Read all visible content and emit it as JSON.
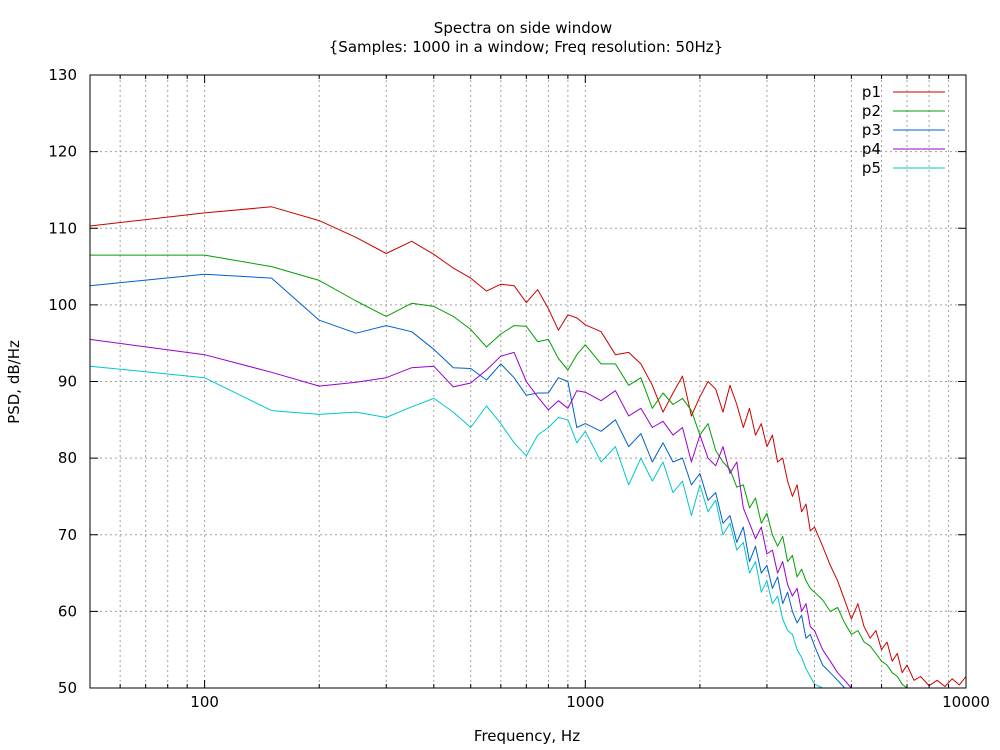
{
  "chart_data": {
    "type": "line",
    "title": "Spectra on side window",
    "subtitle": "{Samples: 1000 in a window; Freq resolution: 50Hz}",
    "xlabel": "Frequency, Hz",
    "ylabel": "PSD, dB/Hz",
    "xscale": "log",
    "xlim": [
      50,
      10000
    ],
    "ylim": [
      50,
      130
    ],
    "xticks": [
      100,
      1000,
      10000
    ],
    "xtick_labels": [
      "100",
      "1000",
      "10000"
    ],
    "yticks": [
      50,
      60,
      70,
      80,
      90,
      100,
      110,
      120,
      130
    ],
    "ytick_labels": [
      "50",
      "60",
      "70",
      "80",
      "90",
      "100",
      "110",
      "120",
      "130"
    ],
    "grid": true,
    "legend_position": "top-right",
    "series": [
      {
        "name": "p1",
        "color": "#cc0000",
        "x": [
          50,
          100,
          150,
          200,
          250,
          300,
          350,
          400,
          450,
          500,
          550,
          600,
          650,
          700,
          750,
          800,
          850,
          900,
          950,
          1000,
          1100,
          1200,
          1300,
          1400,
          1500,
          1600,
          1700,
          1800,
          1900,
          2000,
          2100,
          2200,
          2300,
          2400,
          2500,
          2600,
          2700,
          2800,
          2900,
          3000,
          3100,
          3200,
          3300,
          3400,
          3500,
          3600,
          3700,
          3800,
          3900,
          4000,
          4200,
          4400,
          4600,
          4800,
          5000,
          5200,
          5400,
          5600,
          5800,
          6000,
          6200,
          6400,
          6600,
          6800,
          7000,
          7300,
          7600,
          8000,
          8400,
          8800,
          9200,
          9600,
          10000
        ],
        "y": [
          110.3,
          112,
          112.8,
          111,
          108.8,
          106.7,
          108.3,
          106.6,
          104.8,
          103.5,
          101.8,
          102.7,
          102.5,
          100.3,
          102.0,
          99.5,
          96.7,
          98.7,
          98.3,
          97.4,
          96.5,
          93.5,
          93.8,
          92.3,
          89.5,
          86.0,
          88.5,
          90.7,
          85.5,
          88.0,
          90.0,
          89.0,
          86.0,
          89.5,
          87.0,
          84.0,
          86.5,
          83.0,
          84.5,
          81.5,
          83.0,
          79.5,
          80.0,
          77.0,
          75.0,
          76.5,
          73.0,
          74.0,
          70.5,
          71.0,
          68.5,
          66.0,
          64.0,
          61.5,
          59.0,
          61.0,
          58.0,
          56.5,
          57.5,
          55.0,
          56.0,
          53.5,
          54.5,
          52.0,
          53.0,
          51.0,
          51.5,
          50.3,
          51.0,
          50.2,
          51.2,
          50.4,
          51.5
        ]
      },
      {
        "name": "p2",
        "color": "#00a000",
        "x": [
          50,
          100,
          150,
          200,
          250,
          300,
          350,
          400,
          450,
          500,
          550,
          600,
          650,
          700,
          750,
          800,
          850,
          900,
          950,
          1000,
          1100,
          1200,
          1300,
          1400,
          1500,
          1600,
          1700,
          1800,
          1900,
          2000,
          2100,
          2200,
          2300,
          2400,
          2500,
          2600,
          2700,
          2800,
          2900,
          3000,
          3100,
          3200,
          3300,
          3400,
          3500,
          3600,
          3700,
          3800,
          3900,
          4000,
          4200,
          4400,
          4600,
          4800,
          5000,
          5200,
          5400,
          5600,
          5800,
          6000,
          6200,
          6400,
          6600,
          6800,
          7000
        ],
        "y": [
          106.5,
          106.5,
          105.0,
          103.2,
          100.5,
          98.5,
          100.2,
          99.8,
          98.5,
          96.8,
          94.5,
          96.2,
          97.3,
          97.2,
          95.2,
          95.5,
          93.0,
          91.5,
          93.5,
          94.8,
          92.3,
          92.3,
          89.5,
          90.5,
          86.5,
          88.5,
          87.0,
          87.8,
          86.2,
          83.0,
          84.5,
          81.0,
          79.5,
          78.5,
          76.2,
          76.5,
          73.5,
          74.8,
          71.5,
          72.8,
          70.0,
          68.5,
          69.8,
          66.5,
          67.3,
          64.5,
          65.5,
          64.0,
          63.0,
          62.5,
          61.5,
          60.0,
          60.5,
          58.5,
          57.0,
          57.5,
          56.0,
          55.5,
          54.5,
          53.5,
          53.0,
          52.0,
          51.5,
          50.5,
          50.0
        ]
      },
      {
        "name": "p3",
        "color": "#0060cc",
        "x": [
          50,
          100,
          150,
          200,
          250,
          300,
          350,
          400,
          450,
          500,
          550,
          600,
          650,
          700,
          750,
          800,
          850,
          900,
          950,
          1000,
          1100,
          1200,
          1300,
          1400,
          1500,
          1600,
          1700,
          1800,
          1900,
          2000,
          2100,
          2200,
          2300,
          2400,
          2500,
          2600,
          2700,
          2800,
          2900,
          3000,
          3100,
          3200,
          3300,
          3400,
          3500,
          3600,
          3700,
          3800,
          3900,
          4000,
          4200,
          4400,
          4600,
          4800
        ],
        "y": [
          102.5,
          104.0,
          103.5,
          98.0,
          96.3,
          97.3,
          96.5,
          94.2,
          91.8,
          91.7,
          90.2,
          92.3,
          90.5,
          88.2,
          88.5,
          88.5,
          90.5,
          90.0,
          84.0,
          84.5,
          83.5,
          85.0,
          81.5,
          83.2,
          79.5,
          82.0,
          79.5,
          80.0,
          76.5,
          78.0,
          74.5,
          75.5,
          71.5,
          72.5,
          69.0,
          71.0,
          66.5,
          68.5,
          65.0,
          66.0,
          63.0,
          64.5,
          61.0,
          62.5,
          60.0,
          58.5,
          59.5,
          56.5,
          57.0,
          55.5,
          53.0,
          52.0,
          51.0,
          50.0
        ]
      },
      {
        "name": "p4",
        "color": "#9900cc",
        "x": [
          50,
          100,
          150,
          200,
          250,
          300,
          350,
          400,
          450,
          500,
          550,
          600,
          650,
          700,
          750,
          800,
          850,
          900,
          950,
          1000,
          1100,
          1200,
          1300,
          1400,
          1500,
          1600,
          1700,
          1800,
          1900,
          2000,
          2100,
          2200,
          2300,
          2400,
          2500,
          2600,
          2700,
          2800,
          2900,
          3000,
          3100,
          3200,
          3300,
          3400,
          3500,
          3600,
          3700,
          3800,
          3900,
          4000,
          4200,
          4400,
          4600,
          4800,
          5000
        ],
        "y": [
          95.5,
          93.5,
          91.2,
          89.4,
          89.9,
          90.5,
          91.8,
          92.0,
          89.3,
          89.8,
          91.5,
          93.3,
          93.8,
          90.0,
          88.0,
          86.3,
          87.5,
          86.5,
          88.8,
          88.6,
          87.5,
          88.8,
          85.5,
          86.5,
          84.0,
          84.8,
          83.0,
          84.0,
          79.5,
          83.0,
          80.0,
          79.0,
          81.5,
          78.0,
          79.5,
          73.5,
          71.5,
          69.5,
          71.0,
          67.5,
          68.0,
          65.0,
          66.5,
          63.5,
          62.0,
          63.0,
          60.0,
          61.0,
          58.0,
          57.5,
          55.0,
          53.5,
          52.0,
          51.0,
          50.0
        ]
      },
      {
        "name": "p5",
        "color": "#00c8c8",
        "x": [
          50,
          100,
          150,
          200,
          250,
          300,
          350,
          400,
          450,
          500,
          550,
          600,
          650,
          700,
          750,
          800,
          850,
          900,
          950,
          1000,
          1100,
          1200,
          1300,
          1400,
          1500,
          1600,
          1700,
          1800,
          1900,
          2000,
          2100,
          2200,
          2300,
          2400,
          2500,
          2600,
          2700,
          2800,
          2900,
          3000,
          3100,
          3200,
          3300,
          3400,
          3500,
          3600,
          3700,
          3800,
          3900,
          4000,
          4200
        ],
        "y": [
          92.0,
          90.5,
          86.2,
          85.7,
          86.0,
          85.3,
          86.7,
          87.8,
          86.0,
          84.0,
          86.8,
          84.5,
          82.0,
          80.3,
          83.0,
          84.0,
          85.3,
          85.0,
          82.0,
          83.5,
          79.5,
          81.5,
          76.5,
          80.0,
          77.0,
          79.5,
          75.5,
          77.0,
          72.5,
          76.5,
          73.0,
          74.5,
          70.0,
          71.5,
          68.0,
          69.0,
          65.0,
          66.5,
          62.5,
          64.0,
          61.0,
          62.0,
          59.0,
          57.5,
          57.0,
          55.0,
          54.0,
          52.5,
          51.5,
          50.5,
          50.0
        ]
      }
    ]
  }
}
